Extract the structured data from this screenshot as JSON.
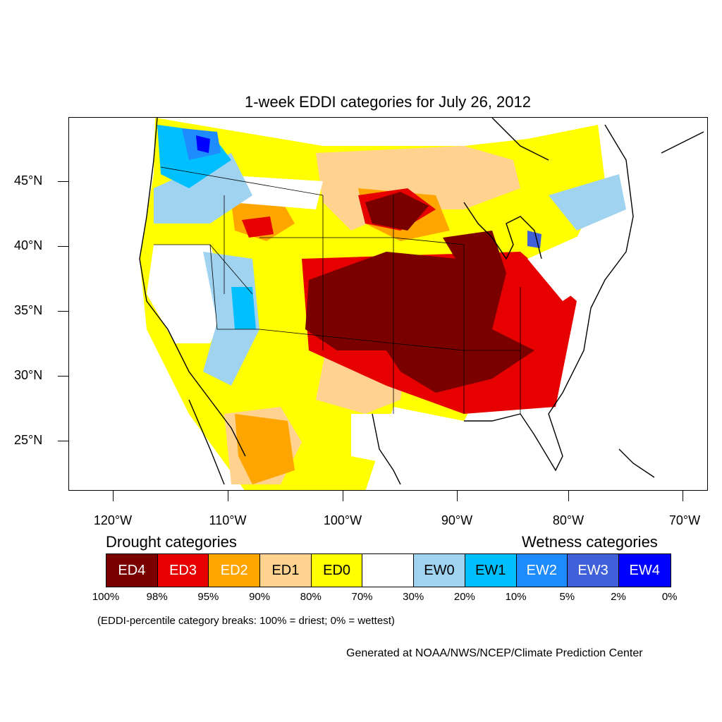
{
  "title": "1-week EDDI categories for July 26, 2012",
  "latitude_labels": [
    "45°N",
    "40°N",
    "35°N",
    "30°N",
    "25°N"
  ],
  "longitude_labels": [
    "120°W",
    "110°W",
    "100°W",
    "90°W",
    "80°W",
    "70°W"
  ],
  "legend": {
    "drought_heading": "Drought categories",
    "wetness_heading": "Wetness categories",
    "categories": [
      {
        "label": "ED4",
        "color": "#7a0000",
        "text_color": "#ffffff"
      },
      {
        "label": "ED3",
        "color": "#e60000",
        "text_color": "#ffffff"
      },
      {
        "label": "ED2",
        "color": "#ffa500",
        "text_color": "#ffffff"
      },
      {
        "label": "ED1",
        "color": "#ffd38f",
        "text_color": "#000000"
      },
      {
        "label": "ED0",
        "color": "#ffff00",
        "text_color": "#000000"
      },
      {
        "label": "",
        "color": "#ffffff",
        "text_color": "#000000"
      },
      {
        "label": "EW0",
        "color": "#9fd3f0",
        "text_color": "#000000"
      },
      {
        "label": "EW1",
        "color": "#00bfff",
        "text_color": "#000000"
      },
      {
        "label": "EW2",
        "color": "#1e8cff",
        "text_color": "#ffffff"
      },
      {
        "label": "EW3",
        "color": "#3f60d8",
        "text_color": "#ffffff"
      },
      {
        "label": "EW4",
        "color": "#0000ff",
        "text_color": "#ffffff"
      }
    ],
    "percentile_breaks": [
      "100%",
      "98%",
      "95%",
      "90%",
      "80%",
      "70%",
      "30%",
      "20%",
      "10%",
      "5%",
      "2%",
      "0%"
    ]
  },
  "note": "(EDDI-percentile category breaks: 100% = driest; 0% = wettest)",
  "credit": "Generated at NOAA/NWS/NCEP/Climate Prediction Center"
}
